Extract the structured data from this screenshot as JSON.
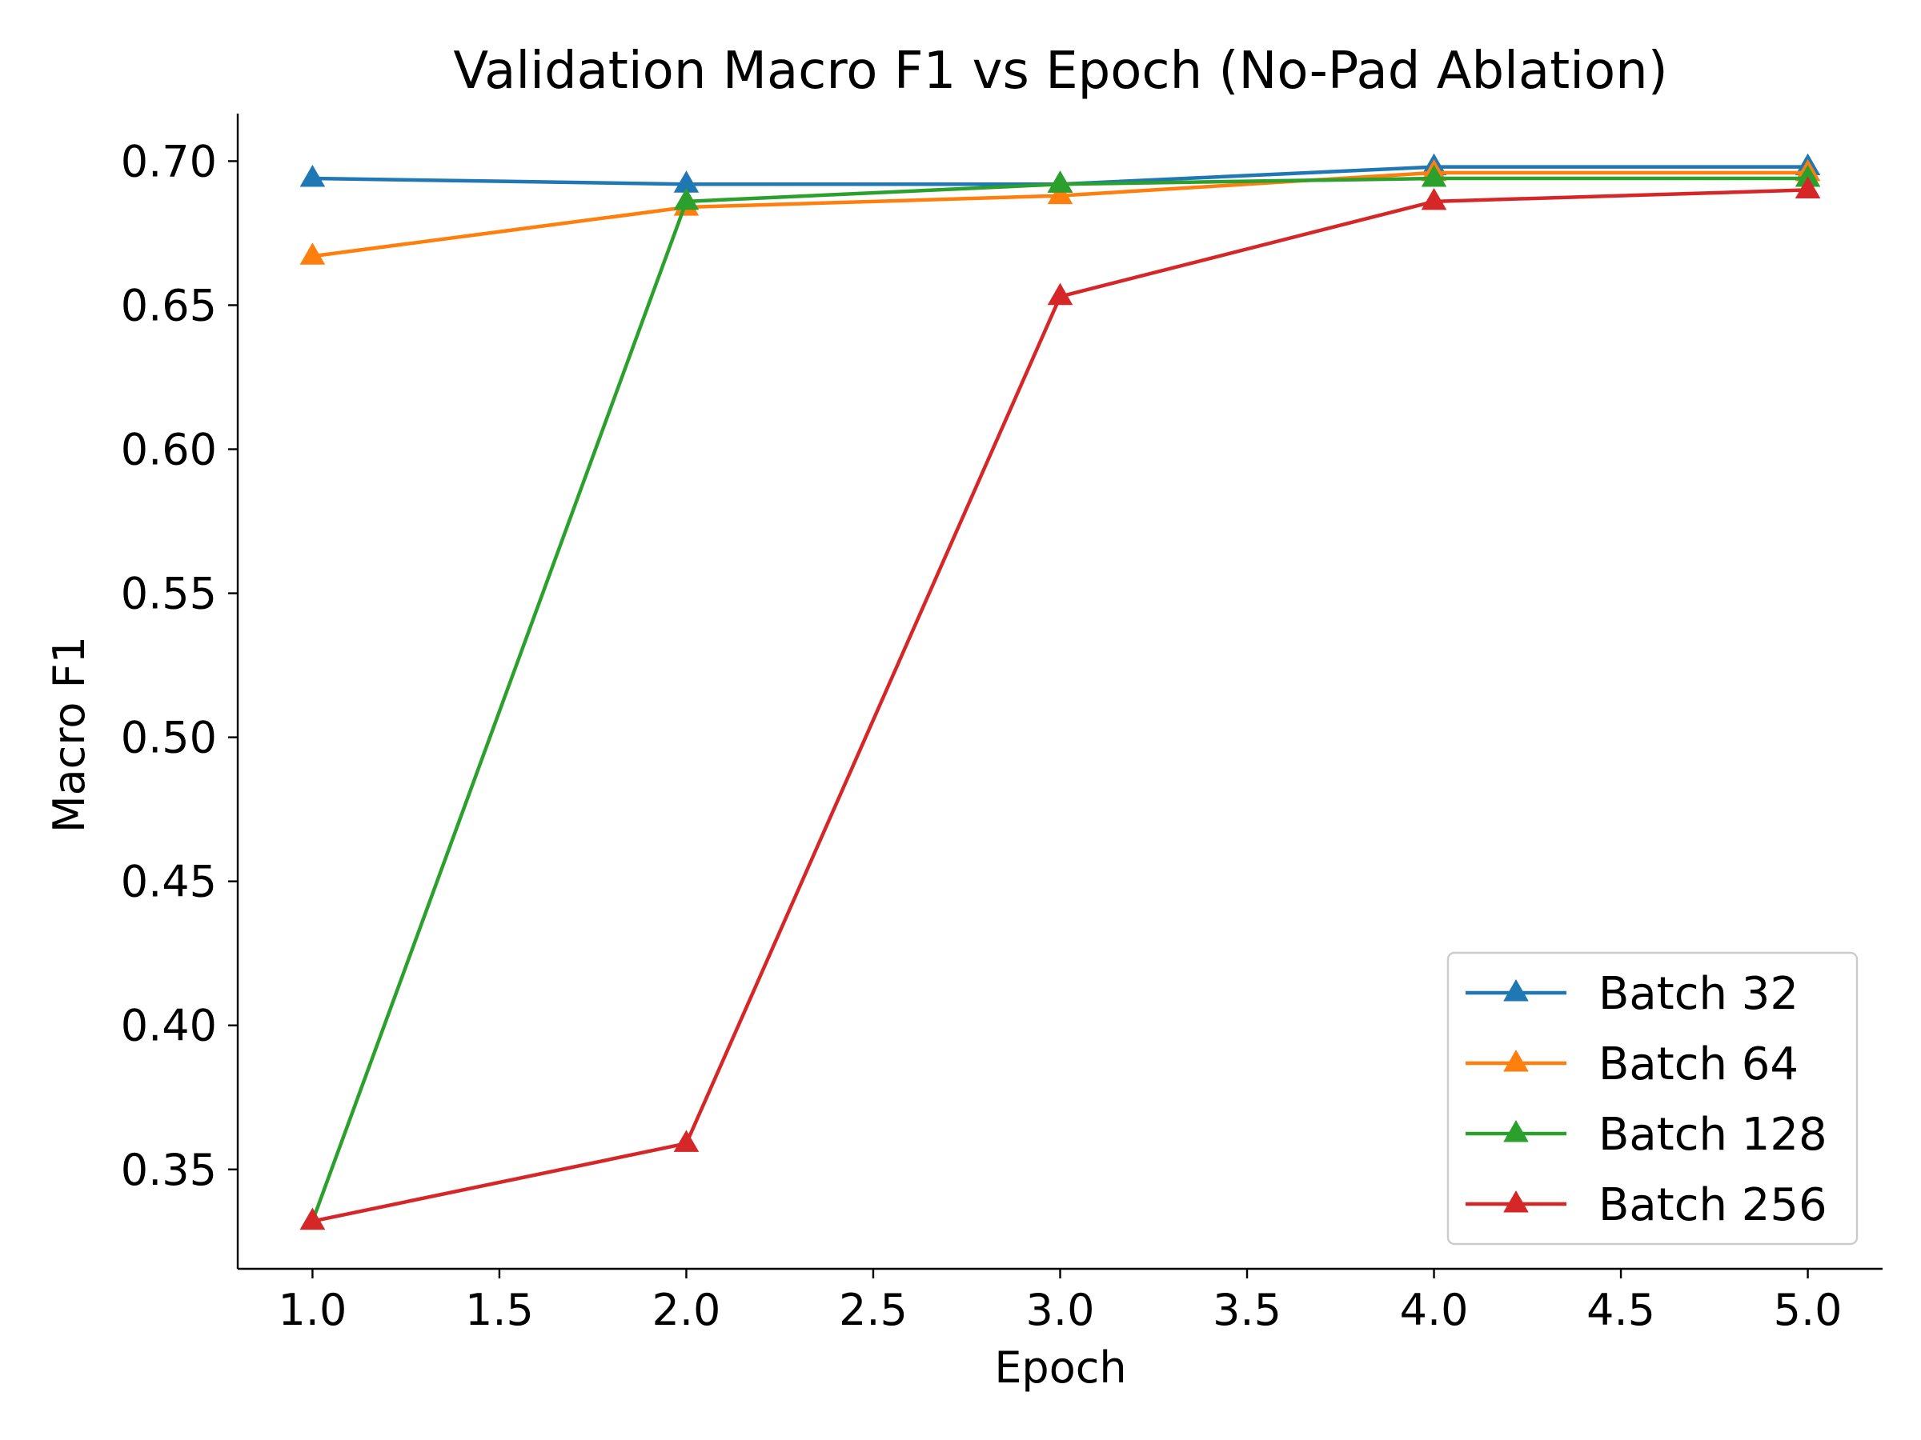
{
  "chart_data": {
    "type": "line",
    "title": "Validation Macro F1 vs Epoch (No-Pad Ablation)",
    "xlabel": "Epoch",
    "ylabel": "Macro F1",
    "xlim": [
      0.8,
      5.2
    ],
    "ylim": [
      0.3155,
      0.7165
    ],
    "xticks": [
      1.0,
      1.5,
      2.0,
      2.5,
      3.0,
      3.5,
      4.0,
      4.5,
      5.0
    ],
    "xtick_labels": [
      "1.0",
      "1.5",
      "2.0",
      "2.5",
      "3.0",
      "3.5",
      "4.0",
      "4.5",
      "5.0"
    ],
    "yticks": [
      0.35,
      0.4,
      0.45,
      0.5,
      0.55,
      0.6,
      0.65,
      0.7
    ],
    "ytick_labels": [
      "0.35",
      "0.40",
      "0.45",
      "0.50",
      "0.55",
      "0.60",
      "0.65",
      "0.70"
    ],
    "grid": false,
    "legend_position": "lower-right",
    "marker": "triangle-up",
    "x": [
      1,
      2,
      3,
      4,
      5
    ],
    "series": [
      {
        "name": "Batch 32",
        "color": "#1f77b4",
        "values": [
          0.694,
          0.692,
          0.692,
          0.698,
          0.698
        ]
      },
      {
        "name": "Batch 64",
        "color": "#ff7f0e",
        "values": [
          0.667,
          0.684,
          0.688,
          0.696,
          0.696
        ]
      },
      {
        "name": "Batch 128",
        "color": "#2ca02c",
        "values": [
          0.332,
          0.686,
          0.692,
          0.694,
          0.694
        ]
      },
      {
        "name": "Batch 256",
        "color": "#d62728",
        "values": [
          0.332,
          0.359,
          0.653,
          0.686,
          0.69
        ]
      }
    ]
  }
}
